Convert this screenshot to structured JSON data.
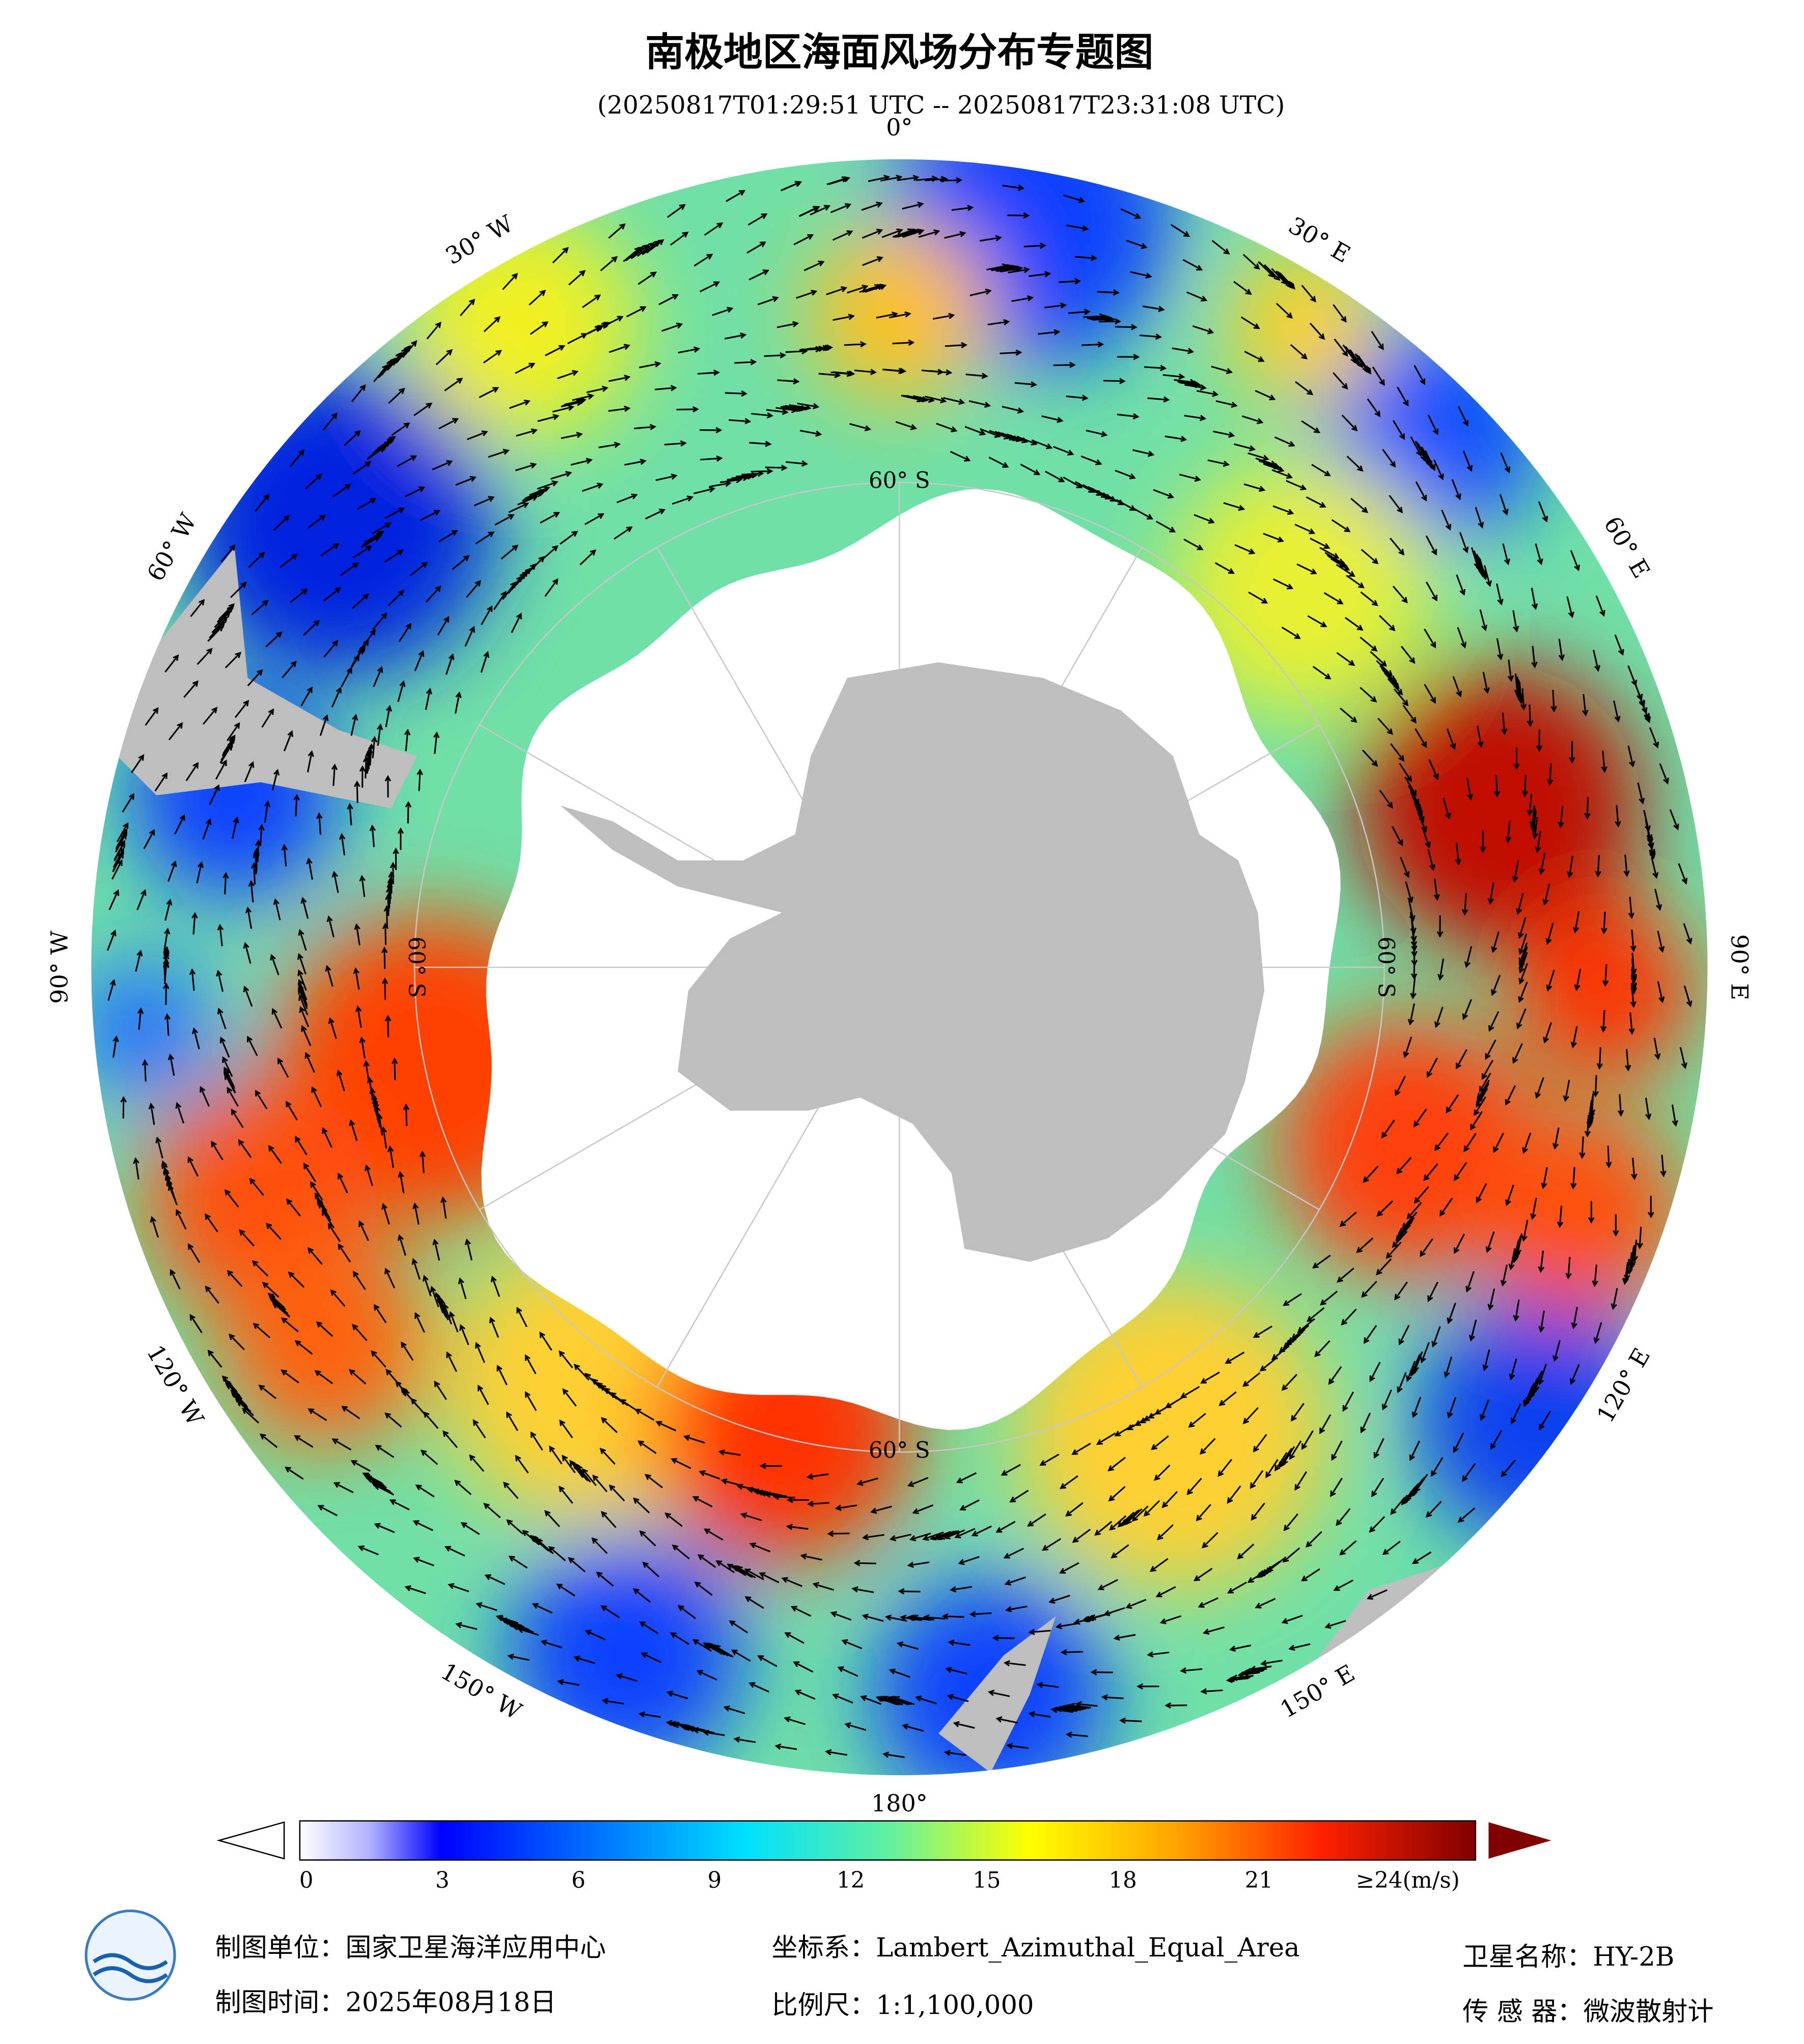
{
  "title": "南极地区海面风场分布专题图",
  "subtitle": "(20250817T01:29:51 UTC -- 20250817T23:31:08 UTC)",
  "map": {
    "longitude_labels": [
      "0°",
      "30° E",
      "60° E",
      "90° E",
      "120° E",
      "150° E",
      "180°",
      "150° W",
      "120° W",
      "90° W",
      "60° W",
      "30° W"
    ],
    "latitude_labels": [
      "60° S",
      "60° S",
      "60° S",
      "60° S"
    ]
  },
  "colorbar": {
    "ticks": [
      0,
      3,
      6,
      9,
      12,
      15,
      18,
      21
    ],
    "max_label": "≥24(m/s)"
  },
  "footer": {
    "producer": "制图单位：国家卫星海洋应用中心",
    "date": "制图时间：2025年08月18日",
    "projection": "坐标系：Lambert_Azimuthal_Equal_Area",
    "scale": "比例尺：1:1,100,000",
    "satellite": "卫星名称：HY-2B",
    "sensor": "传 感 器：微波散射计"
  }
}
